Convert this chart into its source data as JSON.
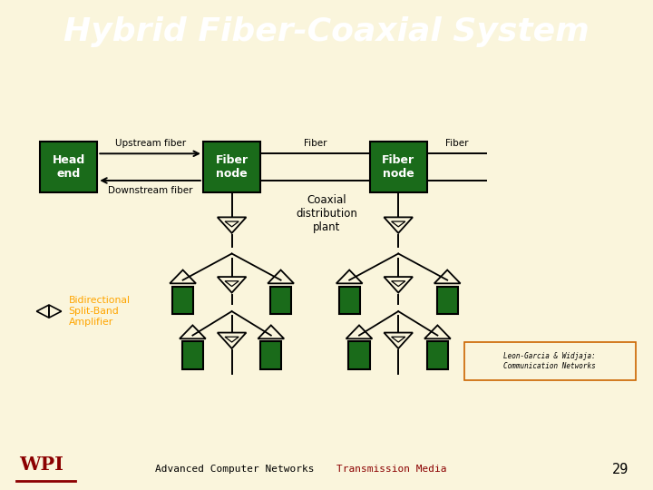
{
  "title": "Hybrid Fiber-Coaxial System",
  "title_bg": "#8B0000",
  "title_fg": "#FFFFFF",
  "bg_color": "#FAF5DC",
  "green_box": "#1a6b1a",
  "black": "#000000",
  "orange_label": "#FFA500",
  "credit_border": "#CC6600",
  "credit_text": "Leon-Garcia & Widjaja:\nCommunication Networks",
  "footer_text1": "Advanced Computer Networks",
  "footer_text2": "Transmission Media",
  "footer_num": "29",
  "footer_bg": "#BBBBBB",
  "wpi_red": "#8B0000"
}
